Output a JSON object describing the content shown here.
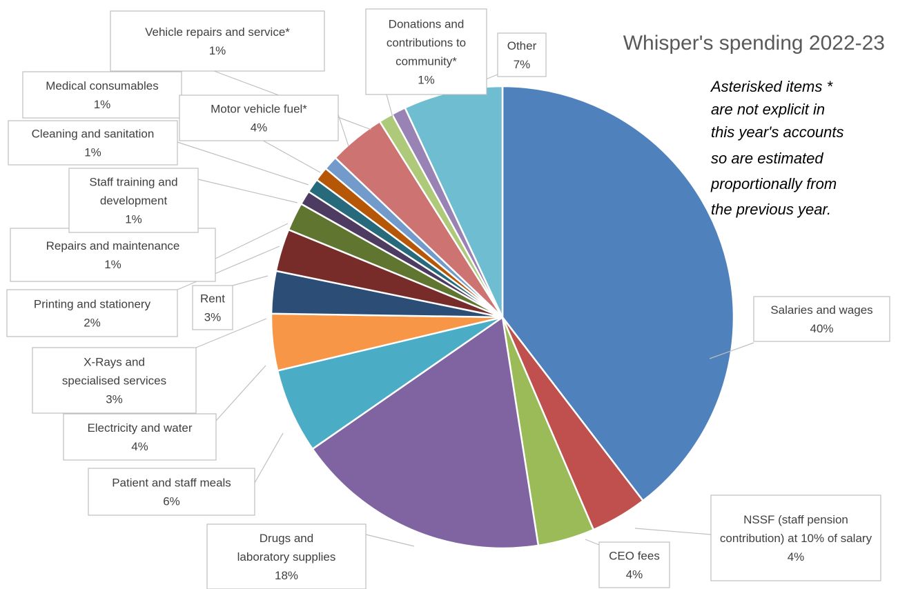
{
  "chart_data": {
    "type": "pie",
    "title": "Whisper's spending 2022-23",
    "note": [
      "Asterisked items *",
      "are not explicit in",
      "this year's accounts",
      "so are estimated",
      "proportionally from",
      "the previous year."
    ],
    "slices": [
      {
        "name": "Salaries and wages",
        "value": 40,
        "label": "40%",
        "color": "#4F81BD"
      },
      {
        "name": "NSSF (staff pension contribution) at 10% of salary",
        "value": 4,
        "label": "4%",
        "color": "#C0504D"
      },
      {
        "name": "CEO fees",
        "value": 4,
        "label": "4%",
        "color": "#9BBB59"
      },
      {
        "name": "Drugs and laboratory supplies",
        "value": 18,
        "label": "18%",
        "color": "#8064A2"
      },
      {
        "name": "Patient and staff meals",
        "value": 6,
        "label": "6%",
        "color": "#4BACC6"
      },
      {
        "name": "Electricity and water",
        "value": 4,
        "label": "4%",
        "color": "#F79646"
      },
      {
        "name": "X-Rays and specialised services",
        "value": 3,
        "label": "3%",
        "color": "#2C4D75"
      },
      {
        "name": "Rent",
        "value": 3,
        "label": "3%",
        "color": "#772C2A"
      },
      {
        "name": "Printing and stationery",
        "value": 2,
        "label": "2%",
        "color": "#5F7530"
      },
      {
        "name": "Repairs and maintenance",
        "value": 1,
        "label": "1%",
        "color": "#4D3B62"
      },
      {
        "name": "Staff training and development",
        "value": 1,
        "label": "1%",
        "color": "#276A7C"
      },
      {
        "name": "Cleaning and sanitation",
        "value": 1,
        "label": "1%",
        "color": "#B65708"
      },
      {
        "name": "Medical consumables",
        "value": 1,
        "label": "1%",
        "color": "#729ACA"
      },
      {
        "name": "Motor vehicle fuel*",
        "value": 4,
        "label": "4%",
        "color": "#CD7371"
      },
      {
        "name": "Vehicle repairs and service*",
        "value": 1,
        "label": "1%",
        "color": "#AFC97A"
      },
      {
        "name": "Donations and contributions to community*",
        "value": 1,
        "label": "1%",
        "color": "#9983B5"
      },
      {
        "name": "Other",
        "value": 7,
        "label": "7%",
        "color": "#6FBDD1"
      }
    ]
  }
}
